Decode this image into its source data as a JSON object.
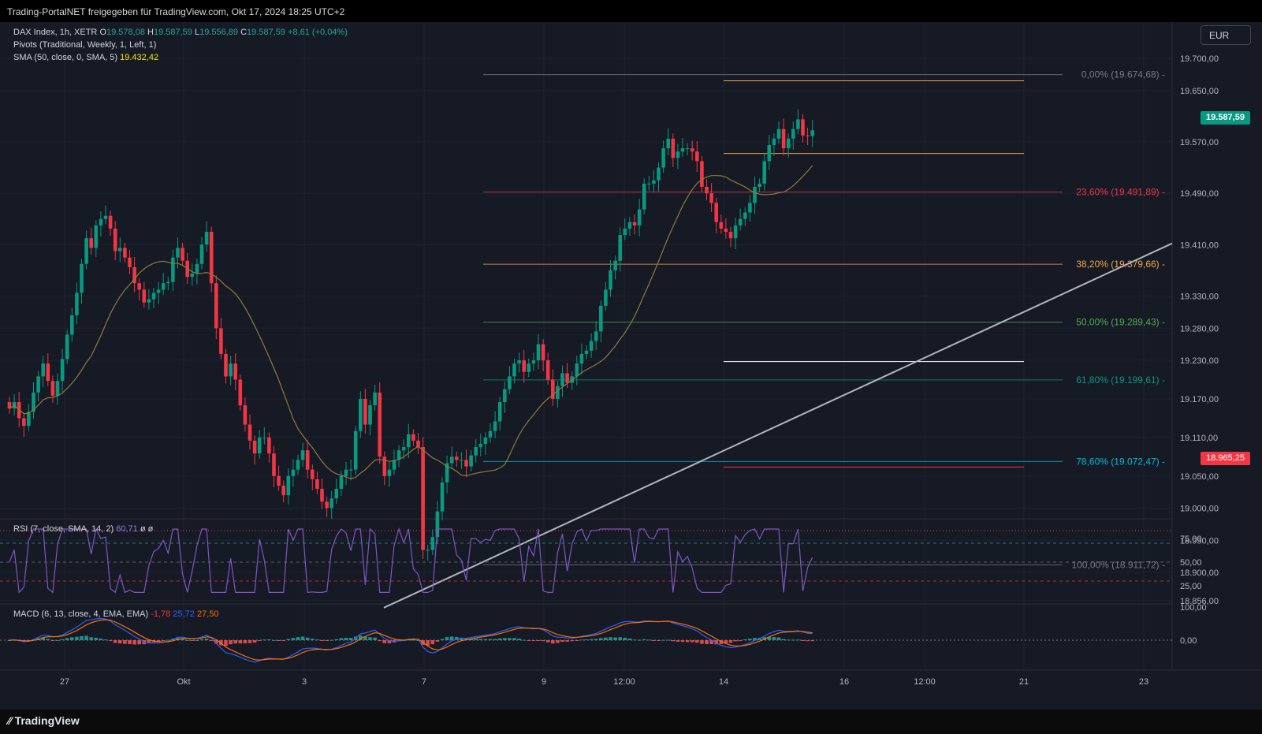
{
  "header": {
    "share_text": "Trading-PortalNET freigegeben für TradingView.com, Okt 17, 2024 18:25 UTC+2"
  },
  "legend": {
    "symbol": "DAX Index, 1h, XETR",
    "ohlc": {
      "o_label": "O",
      "o": "19.578,08",
      "h_label": "H",
      "h": "19.587,59",
      "l_label": "L",
      "l": "19.556,89",
      "c_label": "C",
      "c": "19.587,59",
      "change": "+8,61 (+0,04%)"
    },
    "pivots": "Pivots (Traditional, Weekly, 1, Left, 1)",
    "sma_label": "SMA (50, close, 0, SMA, 5)",
    "sma_value": "19.432,42"
  },
  "currency": "EUR",
  "price_labels": {
    "last": "19.587,59",
    "marker": "18.965,25"
  },
  "rsi_legend": {
    "label": "RSI (7, close, SMA, 14, 2)",
    "value": "60,71",
    "extra1": "ø",
    "extra2": "ø"
  },
  "macd_legend": {
    "label": "MACD (6, 13, close, 4, EMA, EMA)",
    "hist": "-1,78",
    "macd": "25,72",
    "signal": "27,50"
  },
  "footer": {
    "brand": "TradingView"
  },
  "colors": {
    "up": "#089981",
    "down": "#f23645",
    "sma": "#8d7c3a",
    "background": "#161a25",
    "rsi_line": "#7e57c2",
    "macd_line": "#2962ff",
    "signal_line": "#ff6d00"
  },
  "chart_data": [
    {
      "type": "candlestick",
      "title": "DAX Index, 1h, XETR",
      "yaxis_ticks": [
        19700,
        19650,
        19570,
        19490,
        19410,
        19330,
        19280,
        19230,
        19170,
        19110,
        19050,
        19000,
        18950,
        18900,
        18856
      ],
      "yaxis_tick_labels": [
        "19.700,00",
        "19.650,00",
        "19.570,00",
        "19.490,00",
        "19.410,00",
        "19.330,00",
        "19.280,00",
        "19.230,00",
        "19.170,00",
        "19.110,00",
        "19.050,00",
        "19.000,00",
        "18.950,00",
        "18.900,00",
        "18.856,00"
      ],
      "xaxis_labels": [
        "27",
        "Okt",
        "3",
        "7",
        "9",
        "12:00",
        "14",
        "16",
        "12:00",
        "21",
        "23"
      ],
      "candles_close": [
        19155,
        19165,
        19140,
        19128,
        19150,
        19180,
        19205,
        19225,
        19198,
        19175,
        19198,
        19232,
        19270,
        19300,
        19335,
        19380,
        19420,
        19405,
        19440,
        19450,
        19455,
        19435,
        19400,
        19405,
        19390,
        19375,
        19350,
        19340,
        19320,
        19325,
        19335,
        19340,
        19350,
        19352,
        19390,
        19405,
        19385,
        19360,
        19365,
        19380,
        19410,
        19430,
        19350,
        19280,
        19240,
        19205,
        19225,
        19200,
        19160,
        19130,
        19105,
        19085,
        19110,
        19110,
        19085,
        19050,
        19035,
        19020,
        19050,
        19060,
        19075,
        19090,
        19060,
        19045,
        19030,
        19010,
        19000,
        19015,
        19030,
        19050,
        19060,
        19060,
        19120,
        19170,
        19130,
        19160,
        19180,
        19080,
        19050,
        19060,
        19075,
        19090,
        19095,
        19115,
        19105,
        19095,
        18935,
        18935,
        18955,
        18995,
        19040,
        19070,
        19080,
        19075,
        19075,
        19065,
        19082,
        19095,
        19100,
        19110,
        19120,
        19135,
        19165,
        19185,
        19205,
        19225,
        19230,
        19212,
        19225,
        19230,
        19255,
        19230,
        19200,
        19170,
        19190,
        19210,
        19195,
        19205,
        19225,
        19240,
        19245,
        19260,
        19275,
        19315,
        19340,
        19370,
        19385,
        19425,
        19435,
        19445,
        19440,
        19465,
        19505,
        19505,
        19510,
        19530,
        19560,
        19575,
        19545,
        19555,
        19560,
        19560,
        19555,
        19540,
        19500,
        19490,
        19475,
        19445,
        19435,
        19430,
        19420,
        19440,
        19450,
        19460,
        19475,
        19500,
        19505,
        19540,
        19565,
        19575,
        19590,
        19560,
        19575,
        19590,
        19605,
        19580,
        19579,
        19588
      ],
      "pivot_levels": [
        19665,
        19552,
        19228,
        19064
      ],
      "fibonacci": [
        {
          "level": "0,00%",
          "value": 19674.68,
          "label": "0,00% (19.674,68)"
        },
        {
          "level": "23,60%",
          "value": 19491.89,
          "label": "23,60% (19.491,89)"
        },
        {
          "level": "38,20%",
          "value": 19379.66,
          "label": "38,20% (19.379,66)"
        },
        {
          "level": "50,00%",
          "value": 19289.43,
          "label": "50,00% (19.289,43)"
        },
        {
          "level": "61,80%",
          "value": 19199.61,
          "label": "61,80% (19.199,61)"
        },
        {
          "level": "78,60%",
          "value": 19072.47,
          "label": "78,60% (19.072,47)"
        },
        {
          "level": "100,00%",
          "value": 18911.72,
          "label": "100,00% (18.911,72)"
        }
      ],
      "trendline": {
        "from_price": 18845,
        "to_price": 19412
      },
      "sma_last": 19432.42,
      "last_price": 19587.59,
      "marker_price": 18965.25
    },
    {
      "type": "line",
      "title": "RSI (7, close, SMA, 14, 2)",
      "yaxis_ticks": [
        75,
        50,
        25
      ],
      "yaxis_tick_labels": [
        "75,00",
        "50,00",
        "25,00"
      ],
      "levels": [
        70,
        50,
        30
      ],
      "last": 60.71
    },
    {
      "type": "bar",
      "title": "MACD (6, 13, close, 4, EMA, EMA)",
      "yaxis_ticks": [
        100,
        0
      ],
      "yaxis_tick_labels": [
        "100,00",
        "0,00"
      ],
      "hist_last": -1.78,
      "macd_last": 25.72,
      "signal_last": 27.5
    }
  ]
}
